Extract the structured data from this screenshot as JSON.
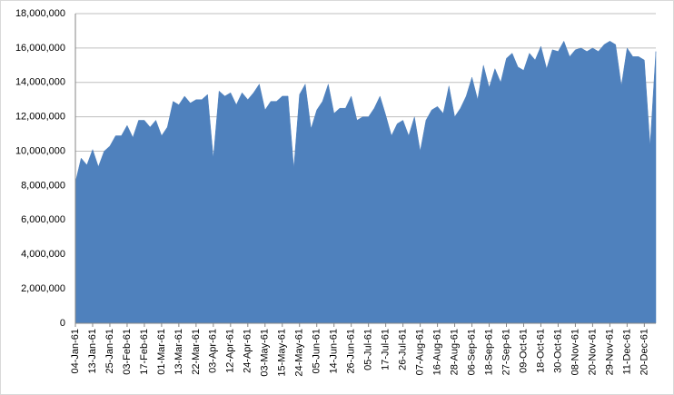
{
  "chart_data": {
    "type": "area",
    "color": "#4f81bd",
    "grid": true,
    "categories": [
      "04-Jan-61",
      null,
      null,
      "13-Jan-61",
      null,
      null,
      "25-Jan-61",
      null,
      null,
      "03-Feb-61",
      null,
      null,
      "17-Feb-61",
      null,
      null,
      "01-Mar-61",
      null,
      null,
      "13-Mar-61",
      null,
      null,
      "22-Mar-61",
      null,
      null,
      "03-Apr-61",
      null,
      null,
      "12-Apr-61",
      null,
      null,
      "24-Apr-61",
      null,
      null,
      "03-May-61",
      null,
      null,
      "15-May-61",
      null,
      null,
      "24-May-61",
      null,
      null,
      "05-Jun-61",
      null,
      null,
      "14-Jun-61",
      null,
      null,
      "26-Jun-61",
      null,
      null,
      "05-Jul-61",
      null,
      null,
      "17-Jul-61",
      null,
      null,
      "26-Jul-61",
      null,
      null,
      "07-Aug-61",
      null,
      null,
      "16-Aug-61",
      null,
      null,
      "28-Aug-61",
      null,
      null,
      "06-Sep-61",
      null,
      null,
      "18-Sep-61",
      null,
      null,
      "27-Sep-61",
      null,
      null,
      "09-Oct-61",
      null,
      null,
      "18-Oct-61",
      null,
      null,
      "30-Oct-61",
      null,
      null,
      "08-Nov-61",
      null,
      null,
      "20-Nov-61",
      null,
      null,
      "29-Nov-61",
      null,
      null,
      "11-Dec-61",
      null,
      null,
      "20-Dec-61",
      null,
      null
    ],
    "values": [
      8200000,
      9600000,
      9200000,
      10100000,
      9100000,
      10000000,
      10300000,
      10900000,
      10900000,
      11500000,
      10800000,
      11800000,
      11800000,
      11400000,
      11800000,
      10900000,
      11400000,
      12900000,
      12700000,
      13200000,
      12800000,
      13000000,
      13000000,
      13300000,
      9600000,
      13500000,
      13200000,
      13400000,
      12700000,
      13400000,
      13000000,
      13400000,
      13900000,
      12400000,
      12900000,
      12900000,
      13200000,
      13200000,
      9000000,
      13300000,
      13900000,
      11300000,
      12400000,
      12900000,
      13900000,
      12200000,
      12500000,
      12500000,
      13200000,
      11800000,
      12000000,
      12000000,
      12500000,
      13200000,
      12100000,
      10900000,
      11600000,
      11800000,
      10900000,
      12000000,
      10000000,
      11800000,
      12400000,
      12600000,
      12200000,
      13800000,
      12000000,
      12500000,
      13200000,
      14300000,
      13000000,
      15000000,
      13700000,
      14800000,
      14000000,
      15400000,
      15700000,
      14900000,
      14700000,
      15700000,
      15300000,
      16100000,
      14800000,
      15900000,
      15800000,
      16400000,
      15500000,
      15900000,
      16000000,
      15800000,
      16000000,
      15800000,
      16200000,
      16400000,
      16200000,
      13800000,
      16000000,
      15500000,
      15500000,
      15300000,
      10300000,
      15800000
    ],
    "ylim": [
      0,
      18000000
    ],
    "yticks": [
      0,
      {
        "value": 2000000,
        "label": "2,000,000"
      },
      {
        "value": 4000000,
        "label": "4,000,000"
      },
      {
        "value": 6000000,
        "label": "6,000,000"
      },
      {
        "value": 8000000,
        "label": "8,000,000"
      },
      {
        "value": 10000000,
        "label": "10,000,000"
      },
      {
        "value": 12000000,
        "label": "12,000,000"
      },
      {
        "value": 14000000,
        "label": "14,000,000"
      },
      {
        "value": 16000000,
        "label": "16,000,000"
      },
      {
        "value": 18000000,
        "label": "18,000,000"
      }
    ]
  }
}
